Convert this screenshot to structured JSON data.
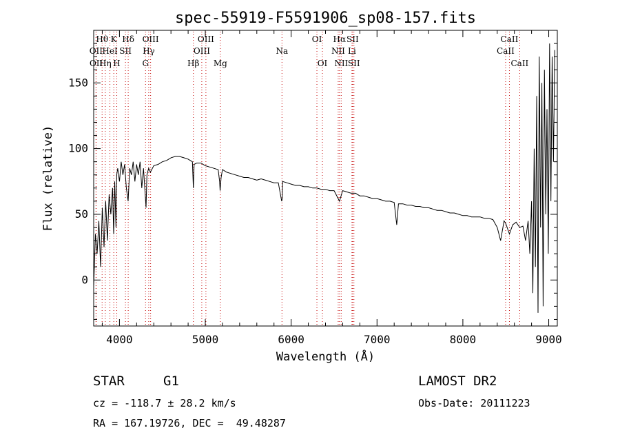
{
  "chart_data": {
    "type": "line",
    "title": "spec-55919-F5591906_sp08-157.fits",
    "xlabel": "Wavelength (Å)",
    "ylabel": "Flux (relative)",
    "xlim": [
      3700,
      9100
    ],
    "ylim": [
      -35,
      190
    ],
    "x_ticks": [
      4000,
      5000,
      6000,
      7000,
      8000,
      9000
    ],
    "y_ticks": [
      0,
      50,
      100,
      150
    ],
    "grid": false,
    "series": [
      {
        "x": [
          3700,
          3720,
          3740,
          3760,
          3780,
          3800,
          3820,
          3840,
          3860,
          3880,
          3900,
          3920,
          3933,
          3945,
          3960,
          3968,
          3980,
          4000,
          4020,
          4040,
          4060,
          4080,
          4101,
          4120,
          4140,
          4160,
          4180,
          4200,
          4220,
          4240,
          4260,
          4280,
          4300,
          4310,
          4320,
          4340,
          4360,
          4400,
          4450,
          4500,
          4550,
          4600,
          4650,
          4700,
          4750,
          4800,
          4850,
          4861,
          4870,
          4900,
          4950,
          5000,
          5050,
          5100,
          5150,
          5167,
          5172,
          5184,
          5200,
          5250,
          5300,
          5350,
          5400,
          5450,
          5500,
          5550,
          5600,
          5650,
          5700,
          5750,
          5800,
          5850,
          5890,
          5896,
          5900,
          5950,
          6000,
          6050,
          6100,
          6150,
          6200,
          6250,
          6300,
          6350,
          6400,
          6450,
          6500,
          6563,
          6600,
          6650,
          6700,
          6750,
          6800,
          6850,
          6900,
          6950,
          7000,
          7050,
          7100,
          7150,
          7200,
          7230,
          7250,
          7300,
          7350,
          7400,
          7450,
          7500,
          7550,
          7600,
          7650,
          7700,
          7750,
          7800,
          7850,
          7900,
          7950,
          8000,
          8050,
          8100,
          8150,
          8200,
          8250,
          8300,
          8350,
          8400,
          8440,
          8480,
          8500,
          8542,
          8580,
          8620,
          8662,
          8700,
          8730,
          8760,
          8780,
          8800,
          8815,
          8830,
          8845,
          8860,
          8875,
          8890,
          8905,
          8920,
          8935,
          8950,
          8965,
          8980,
          8995,
          9010,
          9025,
          9040,
          9055,
          9070
        ],
        "y": [
          -5,
          35,
          20,
          45,
          10,
          55,
          25,
          60,
          30,
          65,
          50,
          70,
          35,
          75,
          40,
          80,
          85,
          75,
          90,
          80,
          88,
          70,
          60,
          85,
          80,
          90,
          75,
          88,
          80,
          90,
          70,
          85,
          65,
          55,
          80,
          85,
          82,
          87,
          88,
          90,
          91,
          93,
          94,
          94,
          93,
          92,
          90,
          70,
          88,
          89,
          89,
          87,
          86,
          85,
          84,
          75,
          68,
          78,
          84,
          82,
          81,
          80,
          79,
          78,
          78,
          77,
          76,
          77,
          76,
          75,
          74,
          74,
          60,
          62,
          75,
          74,
          73,
          72,
          72,
          71,
          71,
          70,
          70,
          69,
          69,
          68,
          68,
          60,
          68,
          67,
          66,
          66,
          64,
          64,
          63,
          62,
          62,
          61,
          60,
          60,
          59,
          42,
          58,
          58,
          57,
          57,
          56,
          56,
          55,
          55,
          54,
          53,
          53,
          52,
          51,
          51,
          50,
          49,
          49,
          48,
          48,
          48,
          47,
          47,
          46,
          40,
          30,
          45,
          43,
          35,
          42,
          44,
          40,
          41,
          30,
          45,
          20,
          60,
          -10,
          100,
          10,
          140,
          -25,
          170,
          40,
          150,
          -20,
          160,
          50,
          130,
          20,
          180,
          60,
          170,
          90,
          175
        ]
      }
    ],
    "line_markers": [
      {
        "label": "Hθ",
        "x": 3798,
        "row": 1,
        "color": "#000000"
      },
      {
        "label": "K",
        "x": 3934,
        "row": 1,
        "color": "#000000"
      },
      {
        "label": "Hδ",
        "x": 4102,
        "row": 1,
        "color": "#000000"
      },
      {
        "label": "OIII",
        "x": 4363,
        "row": 1,
        "color": "#000000"
      },
      {
        "label": "OIII",
        "x": 5007,
        "row": 1,
        "color": "#000000"
      },
      {
        "label": "OI",
        "x": 6300,
        "row": 1,
        "color": "#000000"
      },
      {
        "label": "Hα",
        "x": 6563,
        "row": 1,
        "color": "#000000"
      },
      {
        "label": "SII",
        "x": 6716,
        "row": 1,
        "color": "#000000"
      },
      {
        "label": "CaII",
        "x": 8542,
        "row": 1,
        "color": "#000000"
      },
      {
        "label": "OII",
        "x": 3727,
        "row": 2,
        "color": "#000000"
      },
      {
        "label": "HeI",
        "x": 3889,
        "row": 2,
        "color": "#000000"
      },
      {
        "label": "SII",
        "x": 4070,
        "row": 2,
        "color": "#000000"
      },
      {
        "label": "Hγ",
        "x": 4341,
        "row": 2,
        "color": "#000000"
      },
      {
        "label": "OIII",
        "x": 4959,
        "row": 2,
        "color": "#000000"
      },
      {
        "label": "Na",
        "x": 5893,
        "row": 2,
        "color": "#000000"
      },
      {
        "label": "NII",
        "x": 6548,
        "row": 2,
        "color": "#000000"
      },
      {
        "label": "Li",
        "x": 6708,
        "row": 2,
        "color": "#000000"
      },
      {
        "label": "CaII",
        "x": 8498,
        "row": 2,
        "color": "#000000"
      },
      {
        "label": "OII",
        "x": 3729,
        "row": 3,
        "color": "#000000"
      },
      {
        "label": "Hη",
        "x": 3835,
        "row": 3,
        "color": "#000000"
      },
      {
        "label": "H",
        "x": 3969,
        "row": 3,
        "color": "#000000"
      },
      {
        "label": "G",
        "x": 4304,
        "row": 3,
        "color": "#000000"
      },
      {
        "label": "Hβ",
        "x": 4861,
        "row": 3,
        "color": "#000000"
      },
      {
        "label": "Mg",
        "x": 5175,
        "row": 3,
        "color": "#000000"
      },
      {
        "label": "OI",
        "x": 6364,
        "row": 3,
        "color": "#000000"
      },
      {
        "label": "NII",
        "x": 6583,
        "row": 3,
        "color": "#000000"
      },
      {
        "label": "SII",
        "x": 6731,
        "row": 3,
        "color": "#000000"
      },
      {
        "label": "CaII",
        "x": 8662,
        "row": 3,
        "color": "#000000"
      }
    ],
    "marker_color": "#c40000",
    "line_color": "#000000"
  },
  "info": {
    "object_class": "STAR",
    "subclass": "G1",
    "survey": "LAMOST DR2",
    "cz": "cz = -118.7 ± 28.2 km/s",
    "obs_date": "Obs-Date: 20111223",
    "coords": "RA = 167.19726, DEC =  49.48287"
  }
}
